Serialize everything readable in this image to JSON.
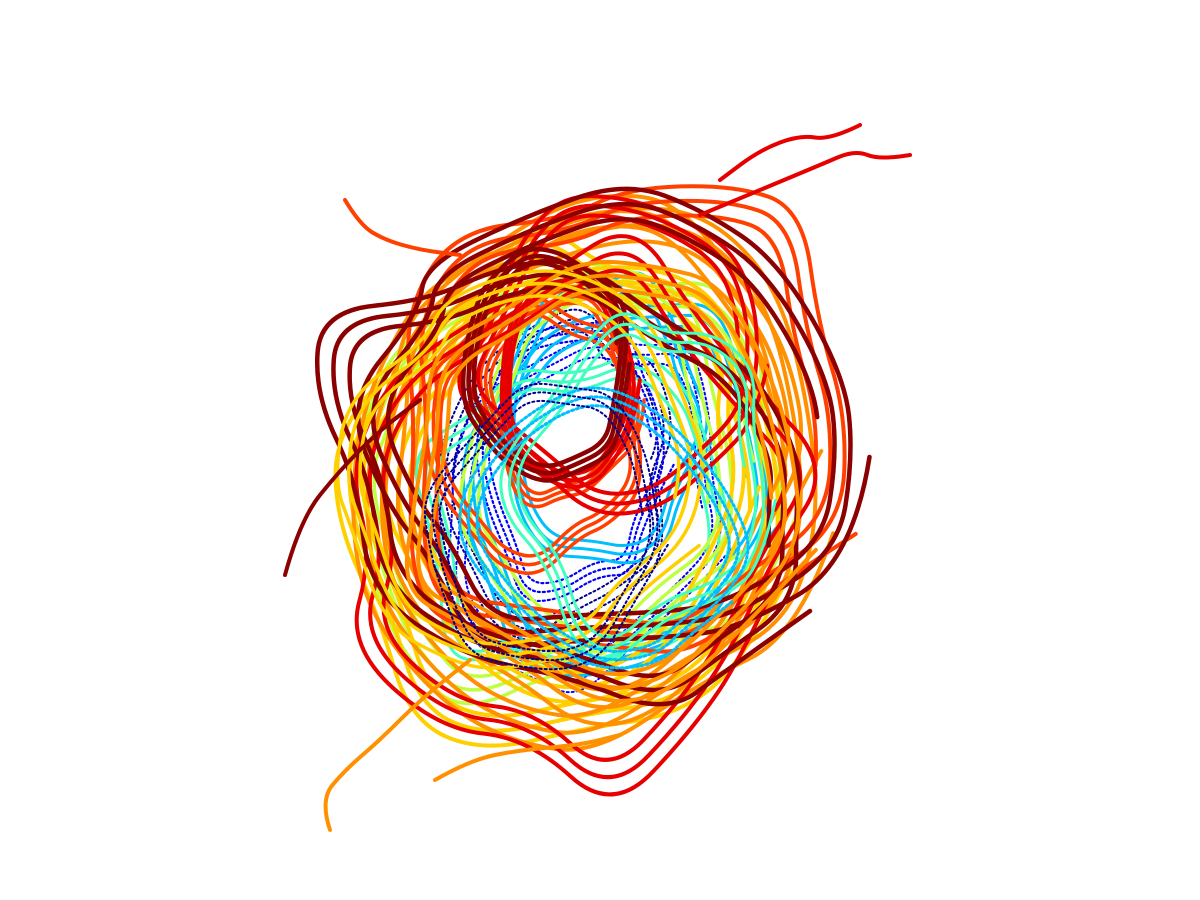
{
  "figure": {
    "background": "#ffffff",
    "palette": [
      "#00008f",
      "#0000ff",
      "#00bfff",
      "#40ffbf",
      "#bfff40",
      "#ffd000",
      "#ff9000",
      "#ff4000",
      "#e60000",
      "#8b0000"
    ]
  }
}
